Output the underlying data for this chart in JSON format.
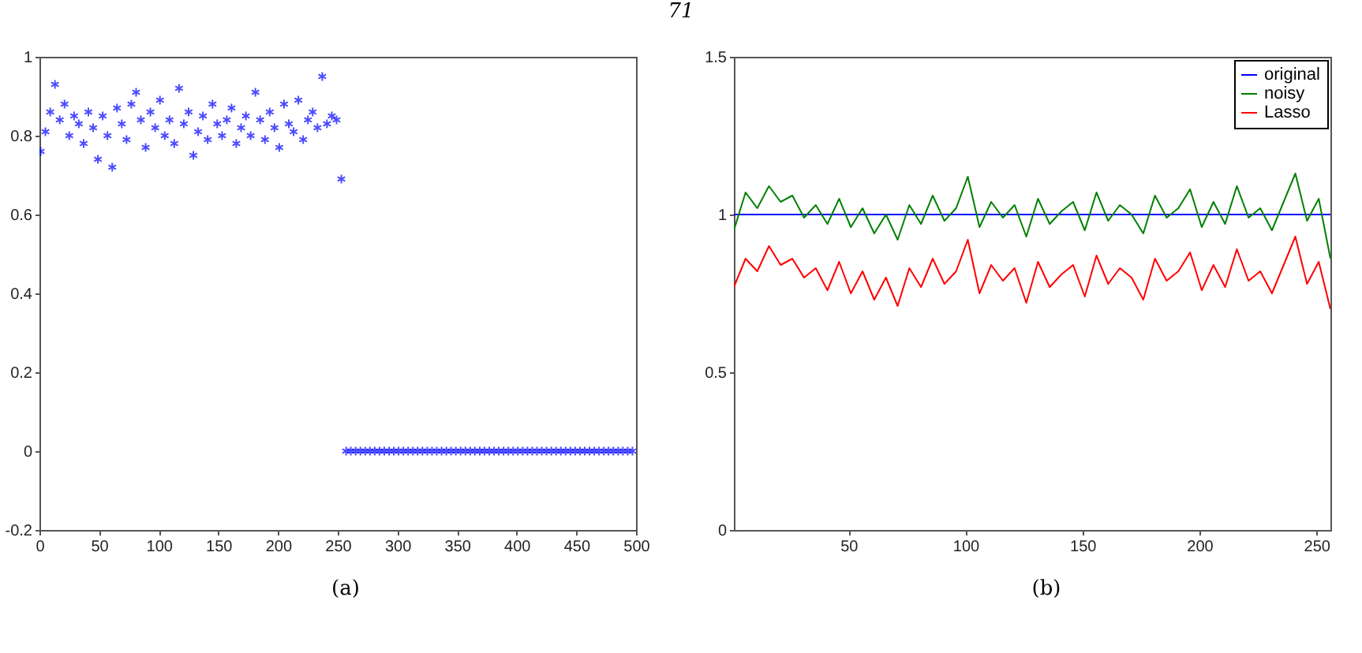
{
  "chart_data": [
    {
      "type": "scatter",
      "annotations": [
        "71",
        "(a)"
      ],
      "xlim": [
        0,
        500
      ],
      "xticks": [
        0,
        50,
        100,
        150,
        200,
        250,
        300,
        350,
        400,
        450,
        500
      ],
      "ylim": [
        -0.2,
        1
      ],
      "yticks": [
        -0.2,
        0,
        0.2,
        0.4,
        0.6,
        0.8,
        1
      ],
      "grid": false,
      "marker": "cross",
      "series": [
        {
          "color": "#0000ff",
          "x": [
            1,
            5,
            9,
            13,
            17,
            21,
            25,
            29,
            33,
            37,
            41,
            45,
            49,
            53,
            57,
            61,
            65,
            69,
            73,
            77,
            81,
            85,
            89,
            93,
            97,
            101,
            105,
            109,
            113,
            117,
            121,
            125,
            129,
            133,
            137,
            141,
            145,
            149,
            153,
            157,
            161,
            165,
            169,
            173,
            177,
            181,
            185,
            189,
            193,
            197,
            201,
            205,
            209,
            213,
            217,
            221,
            225,
            229,
            233,
            237,
            241,
            245,
            249,
            253
          ],
          "values": [
            0.76,
            0.81,
            0.86,
            0.93,
            0.84,
            0.88,
            0.8,
            0.85,
            0.83,
            0.78,
            0.86,
            0.82,
            0.74,
            0.85,
            0.8,
            0.72,
            0.87,
            0.83,
            0.79,
            0.88,
            0.91,
            0.84,
            0.77,
            0.86,
            0.82,
            0.89,
            0.8,
            0.84,
            0.78,
            0.92,
            0.83,
            0.86,
            0.75,
            0.81,
            0.85,
            0.79,
            0.88,
            0.83,
            0.8,
            0.84,
            0.87,
            0.78,
            0.82,
            0.85,
            0.8,
            0.91,
            0.84,
            0.79,
            0.86,
            0.82,
            0.77,
            0.88,
            0.83,
            0.81,
            0.89,
            0.79,
            0.84,
            0.86,
            0.82,
            0.95,
            0.83,
            0.85,
            0.84,
            0.69
          ]
        },
        {
          "color": "#0000ff",
          "x": [
            257,
            261,
            265,
            269,
            273,
            277,
            281,
            285,
            289,
            293,
            297,
            301,
            305,
            309,
            313,
            317,
            321,
            325,
            329,
            333,
            337,
            341,
            345,
            349,
            353,
            357,
            361,
            365,
            369,
            373,
            377,
            381,
            385,
            389,
            393,
            397,
            401,
            405,
            409,
            413,
            417,
            421,
            425,
            429,
            433,
            437,
            441,
            445,
            449,
            453,
            457,
            461,
            465,
            469,
            473,
            477,
            481,
            485,
            489,
            493,
            497
          ],
          "values": [
            0,
            0,
            0,
            0,
            0,
            0,
            0,
            0,
            0,
            0,
            0,
            0,
            0,
            0,
            0,
            0,
            0,
            0,
            0,
            0,
            0,
            0,
            0,
            0,
            0,
            0,
            0,
            0,
            0,
            0,
            0,
            0,
            0,
            0,
            0,
            0,
            0,
            0,
            0,
            0,
            0,
            0,
            0,
            0,
            0,
            0,
            0,
            0,
            0,
            0,
            0,
            0,
            0,
            0,
            0,
            0,
            0,
            0,
            0,
            0,
            0
          ]
        }
      ]
    },
    {
      "type": "line",
      "annotations": [
        "(b)"
      ],
      "xlim": [
        1,
        256
      ],
      "xticks": [
        50,
        100,
        150,
        200,
        250
      ],
      "ylim": [
        0,
        1.5
      ],
      "yticks": [
        0,
        0.5,
        1,
        1.5
      ],
      "grid": false,
      "legend": "top right",
      "line_style": "solid",
      "x": [
        1,
        6,
        11,
        16,
        21,
        26,
        31,
        36,
        41,
        46,
        51,
        56,
        61,
        66,
        71,
        76,
        81,
        86,
        91,
        96,
        101,
        106,
        111,
        116,
        121,
        126,
        131,
        136,
        141,
        146,
        151,
        156,
        161,
        166,
        171,
        176,
        181,
        186,
        191,
        196,
        201,
        206,
        211,
        216,
        221,
        226,
        231,
        236,
        241,
        246,
        251,
        256
      ],
      "series": [
        {
          "name": "original",
          "color": "#0000ff",
          "values": [
            1,
            1,
            1,
            1,
            1,
            1,
            1,
            1,
            1,
            1,
            1,
            1,
            1,
            1,
            1,
            1,
            1,
            1,
            1,
            1,
            1,
            1,
            1,
            1,
            1,
            1,
            1,
            1,
            1,
            1,
            1,
            1,
            1,
            1,
            1,
            1,
            1,
            1,
            1,
            1,
            1,
            1,
            1,
            1,
            1,
            1,
            1,
            1,
            1,
            1,
            1,
            1
          ]
        },
        {
          "name": "noisy",
          "color": "#008000",
          "values": [
            0.95,
            1.07,
            1.02,
            1.09,
            1.04,
            1.06,
            0.99,
            1.03,
            0.97,
            1.05,
            0.96,
            1.02,
            0.94,
            1.0,
            0.92,
            1.03,
            0.97,
            1.06,
            0.98,
            1.02,
            1.12,
            0.96,
            1.04,
            0.99,
            1.03,
            0.93,
            1.05,
            0.97,
            1.01,
            1.04,
            0.95,
            1.07,
            0.98,
            1.03,
            1.0,
            0.94,
            1.06,
            0.99,
            1.02,
            1.08,
            0.96,
            1.04,
            0.97,
            1.09,
            0.99,
            1.02,
            0.95,
            1.04,
            1.13,
            0.98,
            1.05,
            0.86
          ]
        },
        {
          "name": "Lasso",
          "color": "#ff0000",
          "values": [
            0.77,
            0.86,
            0.82,
            0.9,
            0.84,
            0.86,
            0.8,
            0.83,
            0.76,
            0.85,
            0.75,
            0.82,
            0.73,
            0.8,
            0.71,
            0.83,
            0.77,
            0.86,
            0.78,
            0.82,
            0.92,
            0.75,
            0.84,
            0.79,
            0.83,
            0.72,
            0.85,
            0.77,
            0.81,
            0.84,
            0.74,
            0.87,
            0.78,
            0.83,
            0.8,
            0.73,
            0.86,
            0.79,
            0.82,
            0.88,
            0.76,
            0.84,
            0.77,
            0.89,
            0.79,
            0.82,
            0.75,
            0.84,
            0.93,
            0.78,
            0.85,
            0.7
          ]
        }
      ]
    }
  ]
}
